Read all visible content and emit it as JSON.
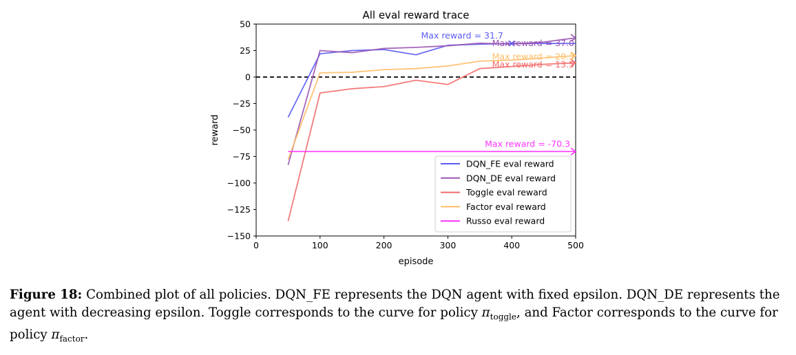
{
  "chart_data": {
    "type": "line",
    "title": "All eval reward trace",
    "xlabel": "episode",
    "ylabel": "reward",
    "xlim": [
      0,
      500
    ],
    "ylim": [
      -150,
      50
    ],
    "xticks": [
      0,
      100,
      200,
      300,
      400,
      500
    ],
    "yticks": [
      50,
      25,
      0,
      -25,
      -50,
      -75,
      -100,
      -125,
      -150
    ],
    "ytick_labels": [
      "50",
      "25",
      "0",
      "−25",
      "−50",
      "−75",
      "−100",
      "−125",
      "−150"
    ],
    "grid": false,
    "legend_position": "lower right",
    "reference_line": {
      "y": 0,
      "style": "dashed",
      "color": "#000000"
    },
    "series": [
      {
        "name": "DQN_FE eval reward",
        "color": "#5b5bf0",
        "x": [
          50,
          100,
          150,
          200,
          250,
          300,
          350,
          400,
          450,
          500
        ],
        "y": [
          -38,
          22,
          25,
          26,
          21,
          30,
          31,
          31.7,
          31.7,
          31.7
        ],
        "max_annotation": "Max reward = 31.7",
        "max_marker": {
          "x": 400,
          "y": 31.7,
          "symbol": "x"
        }
      },
      {
        "name": "DQN_DE eval reward",
        "color": "#9a55b4",
        "x": [
          50,
          100,
          150,
          200,
          250,
          300,
          350,
          400,
          450,
          500
        ],
        "y": [
          -83,
          25,
          23,
          27,
          28,
          29.5,
          32,
          31,
          33,
          37
        ],
        "max_annotation": "Max reward = 37.0",
        "max_marker": {
          "x": 500,
          "y": 37.0,
          "symbol": "arrow"
        }
      },
      {
        "name": "Toggle eval reward",
        "color": "#f36b6b",
        "x": [
          50,
          100,
          150,
          200,
          250,
          300,
          350,
          400,
          450,
          500
        ],
        "y": [
          -136,
          -15,
          -11,
          -9,
          -3,
          -7,
          8,
          10,
          12,
          13.5
        ],
        "max_annotation": "Max reward = 13.5",
        "max_marker": {
          "x": 500,
          "y": 13.5,
          "symbol": "arrow"
        }
      },
      {
        "name": "Factor eval reward",
        "color": "#ffbd66",
        "x": [
          50,
          100,
          150,
          200,
          250,
          300,
          350,
          400,
          450,
          500
        ],
        "y": [
          -78,
          4,
          4.5,
          7,
          8,
          10.5,
          15,
          16,
          18,
          20.3
        ],
        "max_annotation": "Max reward = 20.3",
        "max_marker": {
          "x": 500,
          "y": 20.3,
          "symbol": "arrow"
        }
      },
      {
        "name": "Russo eval reward",
        "color": "#ff33ff",
        "x": [
          50,
          500
        ],
        "y": [
          -70.3,
          -70.3
        ],
        "max_annotation": "Max reward = -70.3",
        "max_marker": {
          "x": 500,
          "y": -70.3,
          "symbol": "arrow"
        }
      }
    ]
  },
  "caption": {
    "label": "Figure 18:",
    "text_1": "Combined plot of all policies. DQN_FE represents the DQN agent with fixed epsilon. DQN_DE represents the agent with decreasing epsilon. Toggle corresponds to the curve for policy ",
    "pi_1": "π",
    "sub_1": "toggle",
    "text_2": ", and Factor corresponds to the curve for policy ",
    "pi_2": "π",
    "sub_2": "factor",
    "text_3": "."
  }
}
